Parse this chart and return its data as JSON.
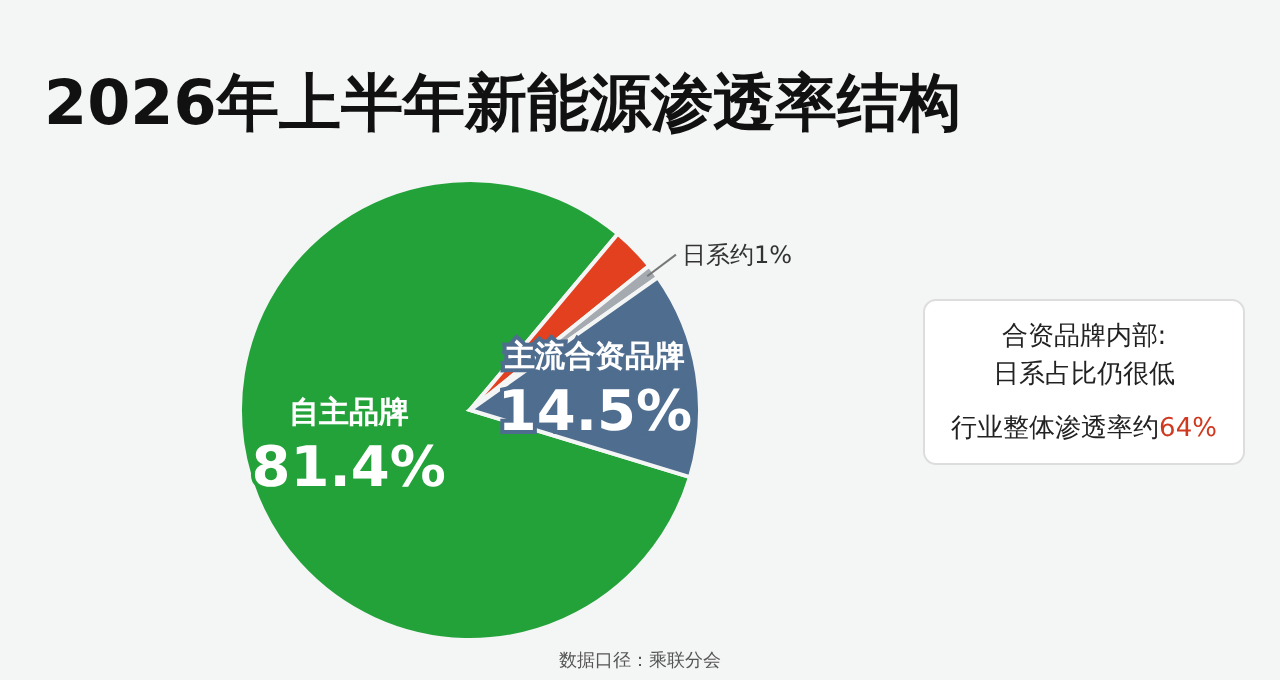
{
  "chart_data": {
    "type": "pie",
    "title": "2026年上半年新能源渗透率结构",
    "categories": [
      "自主品牌",
      null,
      "日系约1%",
      "主流合资品牌"
    ],
    "values": [
      81.4,
      3.1,
      1,
      14.5
    ],
    "value_labels": [
      "81.4%",
      null,
      null,
      "14.5%"
    ],
    "colors": [
      "#23a23a",
      "#e2401f",
      "#a5aab0",
      "#4f6d8e"
    ],
    "annotations": [
      "合资品牌内部:",
      "日系占比仍很低",
      "行业整体渗透率约64%",
      "数据口径：乘联分会"
    ]
  }
}
